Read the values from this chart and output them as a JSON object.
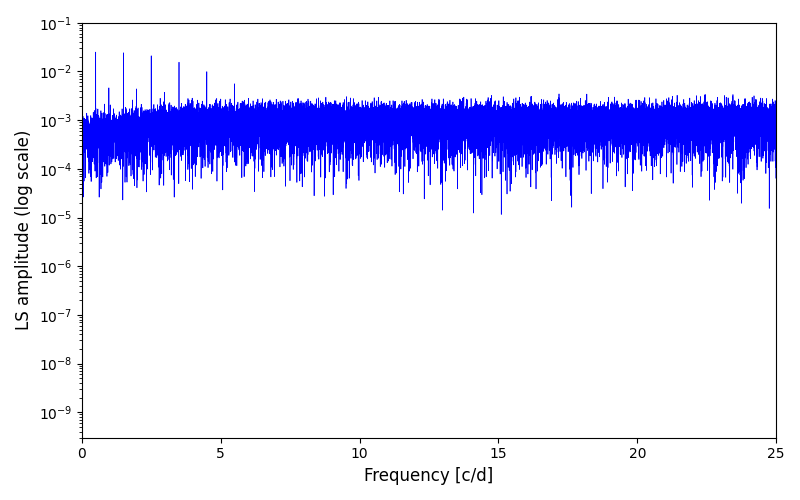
{
  "xlabel": "Frequency [c/d]",
  "ylabel": "LS amplitude (log scale)",
  "line_color": "#0000ff",
  "line_width": 0.5,
  "xlim": [
    0,
    25
  ],
  "ylim": [
    3e-10,
    0.1
  ],
  "freq_max": 25,
  "n_freq": 20000,
  "background_color": "#ffffff",
  "figsize": [
    8.0,
    5.0
  ],
  "dpi": 100
}
